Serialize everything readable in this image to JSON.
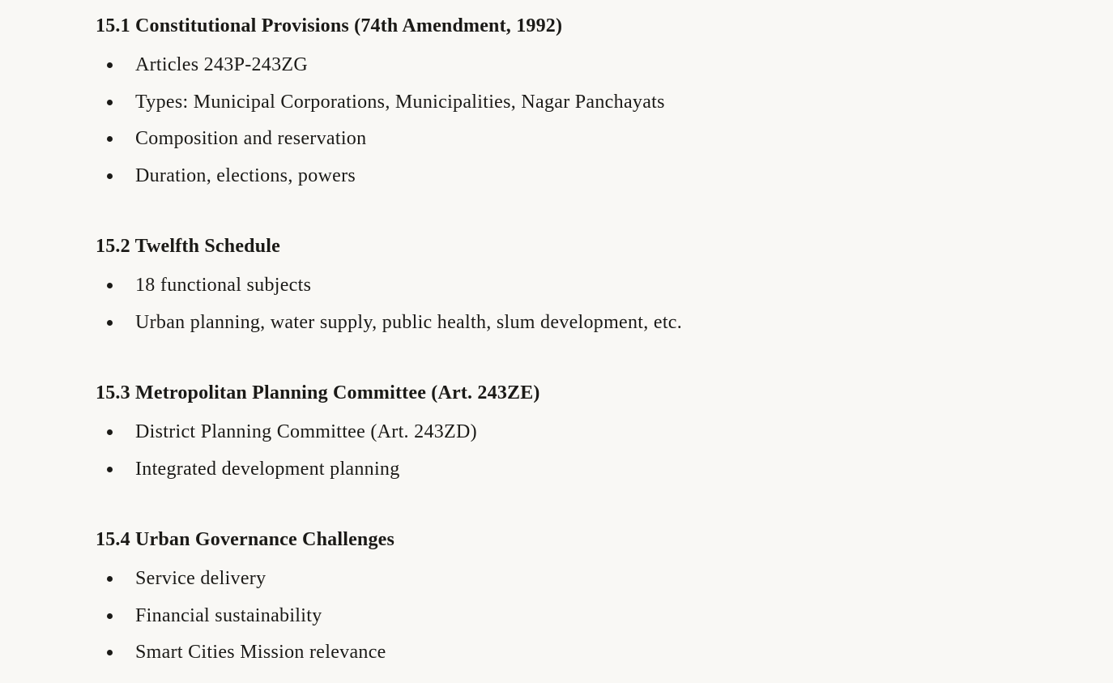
{
  "sections": [
    {
      "heading": "15.1 Constitutional Provisions (74th Amendment, 1992)",
      "items": [
        "Articles 243P-243ZG",
        "Types: Municipal Corporations, Municipalities, Nagar Panchayats",
        "Composition and reservation",
        "Duration, elections, powers"
      ]
    },
    {
      "heading": "15.2 Twelfth Schedule",
      "items": [
        "18 functional subjects",
        "Urban planning, water supply, public health, slum development, etc."
      ]
    },
    {
      "heading": "15.3 Metropolitan Planning Committee (Art. 243ZE)",
      "items": [
        "District Planning Committee (Art. 243ZD)",
        "Integrated development planning"
      ]
    },
    {
      "heading": "15.4 Urban Governance Challenges",
      "items": [
        "Service delivery",
        "Financial sustainability",
        "Smart Cities Mission relevance"
      ]
    }
  ]
}
